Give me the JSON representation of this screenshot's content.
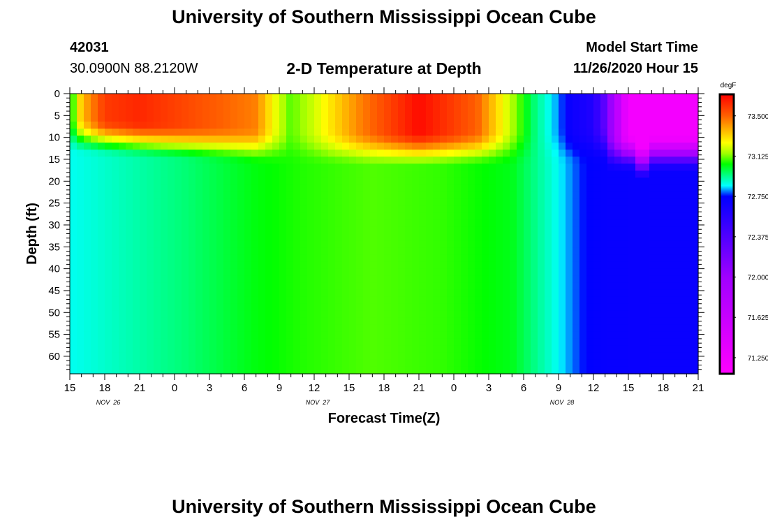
{
  "header": {
    "title_top": "University of Southern Mississippi Ocean Cube",
    "title_bottom": "University of Southern Mississippi Ocean Cube",
    "station_id": "42031",
    "station_coords": "30.0900N 88.2120W",
    "plot_title": "2-D Temperature at Depth",
    "model_start_label": "Model Start Time",
    "model_start_value": "11/26/2020 Hour 15"
  },
  "chart_data": {
    "type": "heatmap",
    "title": "2-D Temperature at Depth",
    "xlabel": "Forecast Time(Z)",
    "ylabel": "Depth (ft)",
    "x_tick_labels": [
      "15",
      "18",
      "21",
      "0",
      "3",
      "6",
      "9",
      "12",
      "15",
      "18",
      "21",
      "0",
      "3",
      "6",
      "9",
      "12",
      "15",
      "18",
      "21"
    ],
    "x_date_labels": [
      {
        "label": "NOV  26",
        "tick_index": 1
      },
      {
        "label": "NOV  27",
        "tick_index": 7
      },
      {
        "label": "NOV  28",
        "tick_index": 14
      }
    ],
    "x_range_hours": [
      0,
      54
    ],
    "y_ticks": [
      0,
      5,
      10,
      15,
      20,
      25,
      30,
      35,
      40,
      45,
      50,
      55,
      60
    ],
    "y_range": [
      0,
      64
    ],
    "y_inverted": true,
    "colorbar": {
      "unit": "degF",
      "range": [
        71.1,
        73.7
      ],
      "tick_values": [
        73.5,
        73.125,
        72.75,
        72.375,
        72.0,
        71.625,
        71.25
      ],
      "tick_labels": [
        "73.500",
        "73.125",
        "72.750",
        "72.375",
        "72.000",
        "71.625",
        "71.250"
      ],
      "stops": [
        {
          "value": 71.1,
          "color": "#ff00ff"
        },
        {
          "value": 72.0,
          "color": "#a000ff"
        },
        {
          "value": 72.45,
          "color": "#4000ff"
        },
        {
          "value": 72.75,
          "color": "#0000ff"
        },
        {
          "value": 72.85,
          "color": "#00ffff"
        },
        {
          "value": 72.95,
          "color": "#00ff80"
        },
        {
          "value": 73.05,
          "color": "#00ff00"
        },
        {
          "value": 73.15,
          "color": "#a0ff00"
        },
        {
          "value": 73.25,
          "color": "#ffff00"
        },
        {
          "value": 73.5,
          "color": "#ff6000"
        },
        {
          "value": 73.7,
          "color": "#ff0000"
        }
      ]
    },
    "surface_profile": [
      [
        0,
        73.0
      ],
      [
        1,
        73.35
      ],
      [
        3,
        73.58
      ],
      [
        6,
        73.62
      ],
      [
        10,
        73.55
      ],
      [
        16,
        73.45
      ],
      [
        17.5,
        73.25
      ],
      [
        19,
        73.1
      ],
      [
        21,
        73.2
      ],
      [
        25,
        73.45
      ],
      [
        30,
        73.68
      ],
      [
        35,
        73.5
      ],
      [
        37.5,
        73.22
      ],
      [
        40,
        72.95
      ],
      [
        42,
        72.8
      ],
      [
        43,
        72.7
      ],
      [
        45,
        72.6
      ],
      [
        46,
        72.3
      ],
      [
        48,
        71.2
      ],
      [
        54,
        71.2
      ]
    ],
    "deep_profile": [
      [
        0,
        72.86
      ],
      [
        2,
        72.88
      ],
      [
        6,
        72.92
      ],
      [
        10,
        72.96
      ],
      [
        16,
        73.04
      ],
      [
        20,
        73.07
      ],
      [
        26,
        73.1
      ],
      [
        32,
        73.08
      ],
      [
        38,
        73.03
      ],
      [
        41,
        72.9
      ],
      [
        42.5,
        72.83
      ],
      [
        44,
        72.76
      ],
      [
        46,
        72.72
      ],
      [
        50,
        72.71
      ],
      [
        54,
        72.71
      ]
    ]
  }
}
